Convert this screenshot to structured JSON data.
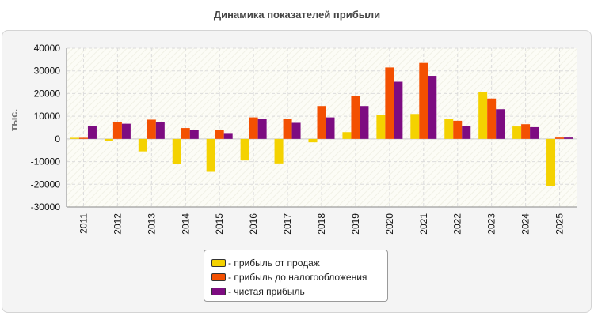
{
  "chart_data": {
    "type": "bar",
    "title": "Динамика показателей прибыли",
    "ylabel": "тыс.",
    "xlabel": "",
    "ylim": [
      -30000,
      40000
    ],
    "yticks": [
      40000,
      30000,
      20000,
      10000,
      0,
      -10000,
      -20000,
      -30000
    ],
    "grid": true,
    "legend_position": "bottom",
    "categories": [
      "2011",
      "2012",
      "2013",
      "2014",
      "2015",
      "2016",
      "2017",
      "2018",
      "2019",
      "2020",
      "2021",
      "2022",
      "2023",
      "2024",
      "2025"
    ],
    "series": [
      {
        "name": "- прибыль от продаж",
        "color": "#f4d200",
        "values": [
          500,
          -900,
          -5500,
          -11000,
          -14500,
          -9500,
          -10800,
          -1500,
          3000,
          10500,
          11000,
          9000,
          20800,
          5500,
          -20800
        ]
      },
      {
        "name": "- прибыль до налогообложения",
        "color": "#f35001",
        "values": [
          500,
          7500,
          8500,
          4800,
          3800,
          9500,
          9000,
          14500,
          19000,
          31500,
          33500,
          8000,
          17800,
          6500,
          600
        ]
      },
      {
        "name": "- чистая прибыль",
        "color": "#7d0c81",
        "values": [
          5800,
          6700,
          7500,
          3800,
          2600,
          8800,
          7100,
          9500,
          14500,
          25200,
          27800,
          5700,
          13100,
          5200,
          600
        ]
      }
    ]
  }
}
